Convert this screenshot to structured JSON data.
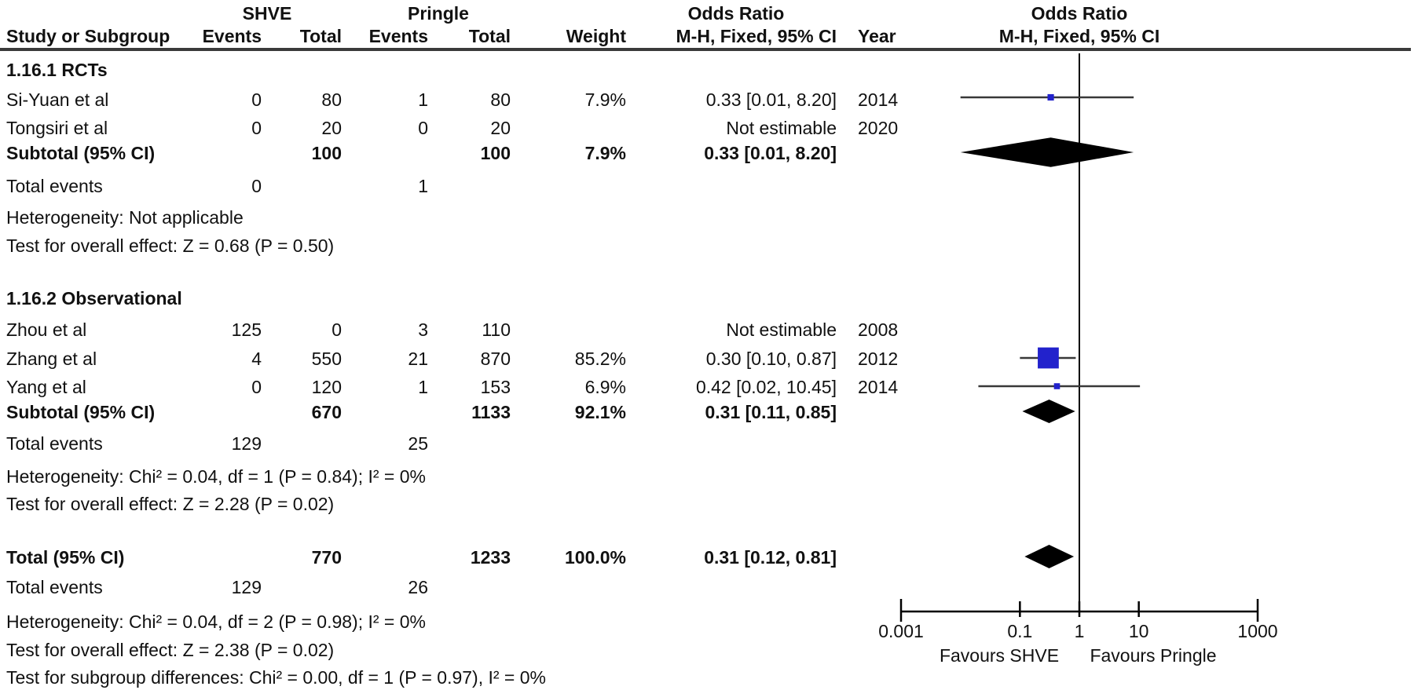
{
  "figure": {
    "group_headers": {
      "shve": "SHVE",
      "pringle": "Pringle",
      "odds_ratio_table": "Odds Ratio",
      "odds_ratio_plot": "Odds Ratio"
    },
    "column_headers": {
      "study": "Study or Subgroup",
      "shve_events": "Events",
      "shve_total": "Total",
      "pringle_events": "Events",
      "pringle_total": "Total",
      "weight": "Weight",
      "mh_fixed_ci": "M-H, Fixed, 95% CI",
      "year": "Year",
      "mh_fixed_ci_plot": "M-H, Fixed, 95% CI"
    },
    "sections": [
      {
        "title": "1.16.1 RCTs",
        "studies": [
          {
            "name": "Si-Yuan et al",
            "shve_events": "0",
            "shve_total": "80",
            "pringle_events": "1",
            "pringle_total": "80",
            "weight": "7.9%",
            "or_ci": "0.33 [0.01, 8.20]",
            "year": "2014"
          },
          {
            "name": "Tongsiri et al",
            "shve_events": "0",
            "shve_total": "20",
            "pringle_events": "0",
            "pringle_total": "20",
            "weight": "",
            "or_ci": "Not estimable",
            "year": "2020"
          }
        ],
        "subtotal": {
          "label": "Subtotal (95% CI)",
          "shve_total": "100",
          "pringle_total": "100",
          "weight": "7.9%",
          "or_ci": "0.33 [0.01, 8.20]"
        },
        "total_events": {
          "label": "Total events",
          "shve": "0",
          "pringle": "1"
        },
        "heterogeneity": "Heterogeneity: Not applicable",
        "overall_effect": "Test for overall effect: Z = 0.68 (P = 0.50)"
      },
      {
        "title": "1.16.2 Observational",
        "studies": [
          {
            "name": "Zhou et al",
            "shve_events": "125",
            "shve_total": "0",
            "pringle_events": "3",
            "pringle_total": "110",
            "weight": "",
            "or_ci": "Not estimable",
            "year": "2008"
          },
          {
            "name": "Zhang et al",
            "shve_events": "4",
            "shve_total": "550",
            "pringle_events": "21",
            "pringle_total": "870",
            "weight": "85.2%",
            "or_ci": "0.30 [0.10, 0.87]",
            "year": "2012"
          },
          {
            "name": "Yang et al",
            "shve_events": "0",
            "shve_total": "120",
            "pringle_events": "1",
            "pringle_total": "153",
            "weight": "6.9%",
            "or_ci": "0.42 [0.02, 10.45]",
            "year": "2014"
          }
        ],
        "subtotal": {
          "label": "Subtotal (95% CI)",
          "shve_total": "670",
          "pringle_total": "1133",
          "weight": "92.1%",
          "or_ci": "0.31 [0.11, 0.85]"
        },
        "total_events": {
          "label": "Total events",
          "shve": "129",
          "pringle": "25"
        },
        "heterogeneity": "Heterogeneity: Chi² = 0.04, df = 1 (P = 0.84); I² = 0%",
        "overall_effect": "Test for overall effect: Z = 2.28 (P = 0.02)"
      }
    ],
    "total": {
      "label": "Total (95% CI)",
      "shve_total": "770",
      "pringle_total": "1233",
      "weight": "100.0%",
      "or_ci": "0.31 [0.12, 0.81]"
    },
    "total_events": {
      "label": "Total events",
      "shve": "129",
      "pringle": "26"
    },
    "heterogeneity": "Heterogeneity: Chi² = 0.04, df = 2 (P = 0.98); I² = 0%",
    "overall_effect": "Test for overall effect: Z = 2.38 (P = 0.02)",
    "subgroup_differences": "Test for subgroup differences: Chi² = 0.00, df = 1 (P = 0.97), I² = 0%"
  },
  "chart_data": {
    "type": "forest",
    "title": "Odds Ratio",
    "effect_label": "M-H, Fixed, 95% CI",
    "comparison": {
      "left_group": "SHVE",
      "right_group": "Pringle"
    },
    "x_scale": "log10",
    "x_range": [
      0.001,
      1000
    ],
    "x_ticks": [
      0.001,
      0.1,
      1,
      10,
      1000
    ],
    "x_tick_labels": [
      "0.001",
      "0.1",
      "1",
      "10",
      "1000"
    ],
    "null_line": 1,
    "favours_left": "Favours SHVE",
    "favours_right": "Favours Pringle",
    "rows": [
      {
        "label": "Si-Yuan et al",
        "kind": "study",
        "or": 0.33,
        "ci_low": 0.01,
        "ci_high": 8.2,
        "weight_pct": 7.9
      },
      {
        "label": "Subtotal RCTs (95% CI)",
        "kind": "diamond",
        "or": 0.33,
        "ci_low": 0.01,
        "ci_high": 8.2
      },
      {
        "label": "Zhang et al",
        "kind": "study",
        "or": 0.3,
        "ci_low": 0.1,
        "ci_high": 0.87,
        "weight_pct": 85.2
      },
      {
        "label": "Yang et al",
        "kind": "study",
        "or": 0.42,
        "ci_low": 0.02,
        "ci_high": 10.45,
        "weight_pct": 6.9
      },
      {
        "label": "Subtotal Observational (95% CI)",
        "kind": "diamond",
        "or": 0.31,
        "ci_low": 0.11,
        "ci_high": 0.85
      },
      {
        "label": "Total (95% CI)",
        "kind": "diamond",
        "or": 0.31,
        "ci_low": 0.12,
        "ci_high": 0.81
      }
    ],
    "not_estimable": [
      "Tongsiri et al (2020)",
      "Zhou et al (2008)"
    ],
    "colors": {
      "study_marker": "#2222CC",
      "diamond": "#000000",
      "ci_line": "#383838",
      "axis": "#000000",
      "text": "#111111"
    }
  }
}
